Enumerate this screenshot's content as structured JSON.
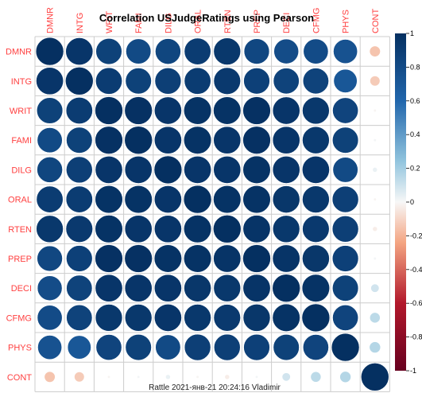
{
  "colors": {
    "positive": "#053061",
    "negative": "#67001f",
    "label": "#ff4040",
    "grid": "#cccccc"
  },
  "chart_data": {
    "type": "heatmap",
    "title": "Correlation USJudgeRatings using Pearson",
    "footer": "Rattle 2021-янв-21 20:24:16 Vladimir",
    "legend_position": "right",
    "color_range": [
      -1,
      1
    ],
    "colorbar_ticks": [
      "1",
      "0.8",
      "0.6",
      "0.4",
      "0.2",
      "0",
      "-0.2",
      "-0.4",
      "-0.6",
      "-0.8",
      "-1"
    ],
    "variables": [
      "DMNR",
      "INTG",
      "WRIT",
      "FAMI",
      "DILG",
      "ORAL",
      "RTEN",
      "PREP",
      "DECI",
      "CFMG",
      "PHYS",
      "CONT"
    ],
    "matrix": [
      [
        1.0,
        0.96,
        0.87,
        0.81,
        0.84,
        0.91,
        0.94,
        0.83,
        0.79,
        0.8,
        0.75,
        -0.15
      ],
      [
        0.96,
        1.0,
        0.91,
        0.87,
        0.89,
        0.91,
        0.93,
        0.88,
        0.86,
        0.86,
        0.71,
        -0.13
      ],
      [
        0.87,
        0.91,
        1.0,
        0.99,
        0.96,
        0.98,
        0.98,
        0.99,
        0.96,
        0.94,
        0.85,
        -0.01
      ],
      [
        0.81,
        0.87,
        0.99,
        1.0,
        0.96,
        0.98,
        0.96,
        0.99,
        0.96,
        0.94,
        0.87,
        0.01
      ],
      [
        0.84,
        0.89,
        0.96,
        0.96,
        1.0,
        0.96,
        0.96,
        0.98,
        0.96,
        0.96,
        0.81,
        0.03
      ],
      [
        0.91,
        0.91,
        0.98,
        0.98,
        0.96,
        1.0,
        0.98,
        0.98,
        0.95,
        0.94,
        0.89,
        -0.01
      ],
      [
        0.94,
        0.93,
        0.98,
        0.96,
        0.96,
        0.98,
        1.0,
        0.97,
        0.94,
        0.93,
        0.89,
        -0.03
      ],
      [
        0.83,
        0.88,
        0.99,
        0.99,
        0.98,
        0.98,
        0.97,
        1.0,
        0.97,
        0.95,
        0.88,
        0.01
      ],
      [
        0.79,
        0.86,
        0.96,
        0.96,
        0.96,
        0.95,
        0.94,
        0.97,
        1.0,
        0.98,
        0.87,
        0.09
      ],
      [
        0.8,
        0.86,
        0.94,
        0.94,
        0.96,
        0.94,
        0.93,
        0.95,
        0.98,
        1.0,
        0.85,
        0.14
      ],
      [
        0.75,
        0.71,
        0.85,
        0.87,
        0.81,
        0.89,
        0.89,
        0.88,
        0.87,
        0.85,
        1.0,
        0.16
      ],
      [
        -0.15,
        -0.13,
        -0.01,
        0.01,
        0.03,
        -0.01,
        -0.03,
        0.01,
        0.09,
        0.14,
        0.16,
        1.0
      ]
    ]
  }
}
